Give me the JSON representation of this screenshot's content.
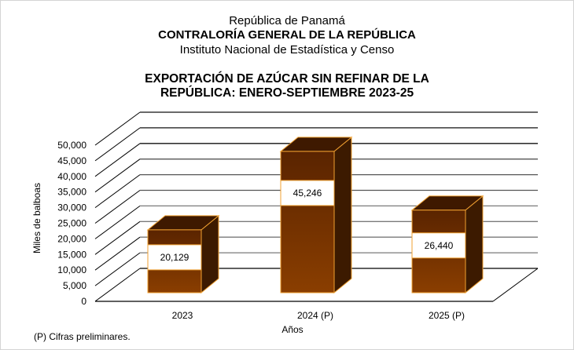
{
  "header": {
    "country": "República de Panamá",
    "institution": "CONTRALORÍA GENERAL DE LA REPÚBLICA",
    "institute": "Instituto  Nacional de Estadística y Censo"
  },
  "footnote": "(P) Cifras  preliminares.",
  "colors": {
    "bar_front_top": "#5a2400",
    "bar_front_bottom": "#8a3e00",
    "bar_top": "#3e1900",
    "bar_side": "#3c1a00",
    "bar_border": "#f0a030",
    "label_box": "#ffffff"
  },
  "chart_data": {
    "type": "bar",
    "title": "EXPORTACIÓN DE AZÚCAR SIN REFINAR DE LA REPÚBLICA: ENERO-SEPTIEMBRE 2023-25",
    "title_lines": [
      "EXPORTACIÓN DE AZÚCAR SIN REFINAR DE LA",
      "REPÚBLICA: ENERO-SEPTIEMBRE 2023-25"
    ],
    "xlabel": "Años",
    "ylabel": "Miles de balboas",
    "categories": [
      "2023",
      "2024 (P)",
      "2025 (P)"
    ],
    "values": [
      20129,
      45246,
      26440
    ],
    "data_labels": [
      "20,129",
      "45,246",
      "26,440"
    ],
    "ylim": [
      0,
      50000
    ],
    "yticks": [
      0,
      5000,
      10000,
      15000,
      20000,
      25000,
      30000,
      35000,
      40000,
      45000,
      50000
    ],
    "ytick_labels": [
      "0",
      "5,000",
      "10,000",
      "15,000",
      "20,000",
      "25,000",
      "30,000",
      "35,000",
      "40,000",
      "45,000",
      "50,000"
    ],
    "grid": true,
    "legend": "none",
    "style": "3d"
  }
}
